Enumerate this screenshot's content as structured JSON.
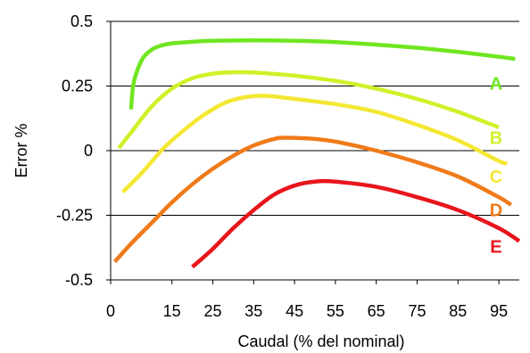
{
  "chart_data": {
    "type": "line",
    "xlabel": "Caudal (% del nominal)",
    "ylabel": "Error %",
    "xlim": [
      0,
      100
    ],
    "ylim": [
      -0.5,
      0.5
    ],
    "x_ticks": [
      0,
      15,
      25,
      35,
      45,
      55,
      65,
      75,
      85,
      95
    ],
    "x_tick_labels": [
      "0",
      "15",
      "25",
      "35",
      "45",
      "55",
      "65",
      "75",
      "85",
      "95"
    ],
    "y_ticks": [
      0.5,
      0.25,
      0,
      -0.25,
      -0.5
    ],
    "y_tick_labels": [
      "0.5",
      "0.25",
      "0",
      "-0.25",
      "-0.5"
    ],
    "grid": "horizontal",
    "legend": "inline labels at right end of each curve",
    "series": [
      {
        "name": "A",
        "color": "#6fe620",
        "points": [
          [
            5,
            0.16
          ],
          [
            5.5,
            0.25
          ],
          [
            6.5,
            0.31
          ],
          [
            8,
            0.36
          ],
          [
            10,
            0.39
          ],
          [
            12,
            0.405
          ],
          [
            15,
            0.415
          ],
          [
            20,
            0.421
          ],
          [
            25,
            0.425
          ],
          [
            35,
            0.427
          ],
          [
            45,
            0.425
          ],
          [
            55,
            0.42
          ],
          [
            65,
            0.41
          ],
          [
            75,
            0.398
          ],
          [
            85,
            0.382
          ],
          [
            95,
            0.363
          ],
          [
            99,
            0.355
          ]
        ]
      },
      {
        "name": "B",
        "color": "#d2f02a",
        "points": [
          [
            2,
            0.01
          ],
          [
            5,
            0.07
          ],
          [
            10,
            0.17
          ],
          [
            15,
            0.24
          ],
          [
            20,
            0.28
          ],
          [
            25,
            0.298
          ],
          [
            30,
            0.303
          ],
          [
            35,
            0.302
          ],
          [
            45,
            0.29
          ],
          [
            55,
            0.27
          ],
          [
            65,
            0.24
          ],
          [
            75,
            0.2
          ],
          [
            85,
            0.15
          ],
          [
            95,
            0.09
          ]
        ]
      },
      {
        "name": "C",
        "color": "#f3e733",
        "points": [
          [
            3,
            -0.16
          ],
          [
            8,
            -0.08
          ],
          [
            13,
            0.01
          ],
          [
            18,
            0.08
          ],
          [
            23,
            0.14
          ],
          [
            28,
            0.185
          ],
          [
            33,
            0.207
          ],
          [
            38,
            0.212
          ],
          [
            45,
            0.2
          ],
          [
            55,
            0.18
          ],
          [
            65,
            0.15
          ],
          [
            75,
            0.1
          ],
          [
            85,
            0.04
          ],
          [
            95,
            -0.04
          ],
          [
            97,
            -0.05
          ]
        ]
      },
      {
        "name": "D",
        "color": "#f07a1a",
        "points": [
          [
            1,
            -0.43
          ],
          [
            5,
            -0.36
          ],
          [
            10,
            -0.28
          ],
          [
            15,
            -0.2
          ],
          [
            20,
            -0.13
          ],
          [
            25,
            -0.07
          ],
          [
            30,
            -0.02
          ],
          [
            35,
            0.02
          ],
          [
            40,
            0.045
          ],
          [
            43,
            0.05
          ],
          [
            50,
            0.045
          ],
          [
            55,
            0.035
          ],
          [
            65,
            0.0
          ],
          [
            75,
            -0.045
          ],
          [
            85,
            -0.1
          ],
          [
            95,
            -0.18
          ],
          [
            98,
            -0.21
          ]
        ]
      },
      {
        "name": "E",
        "color": "#e8151c",
        "points": [
          [
            20,
            -0.45
          ],
          [
            25,
            -0.38
          ],
          [
            30,
            -0.3
          ],
          [
            35,
            -0.23
          ],
          [
            40,
            -0.17
          ],
          [
            45,
            -0.135
          ],
          [
            50,
            -0.12
          ],
          [
            55,
            -0.12
          ],
          [
            65,
            -0.14
          ],
          [
            75,
            -0.18
          ],
          [
            85,
            -0.23
          ],
          [
            95,
            -0.3
          ],
          [
            100,
            -0.35
          ]
        ]
      }
    ],
    "series_labels": [
      {
        "text": "A",
        "x": 93,
        "y": 0.26,
        "color": "#6fe620"
      },
      {
        "text": "B",
        "x": 93,
        "y": 0.05,
        "color": "#d2f02a"
      },
      {
        "text": "C",
        "x": 93,
        "y": -0.1,
        "color": "#f3e733"
      },
      {
        "text": "D",
        "x": 93,
        "y": -0.23,
        "color": "#f07a1a"
      },
      {
        "text": "E",
        "x": 93,
        "y": -0.37,
        "color": "#e8151c"
      }
    ]
  }
}
